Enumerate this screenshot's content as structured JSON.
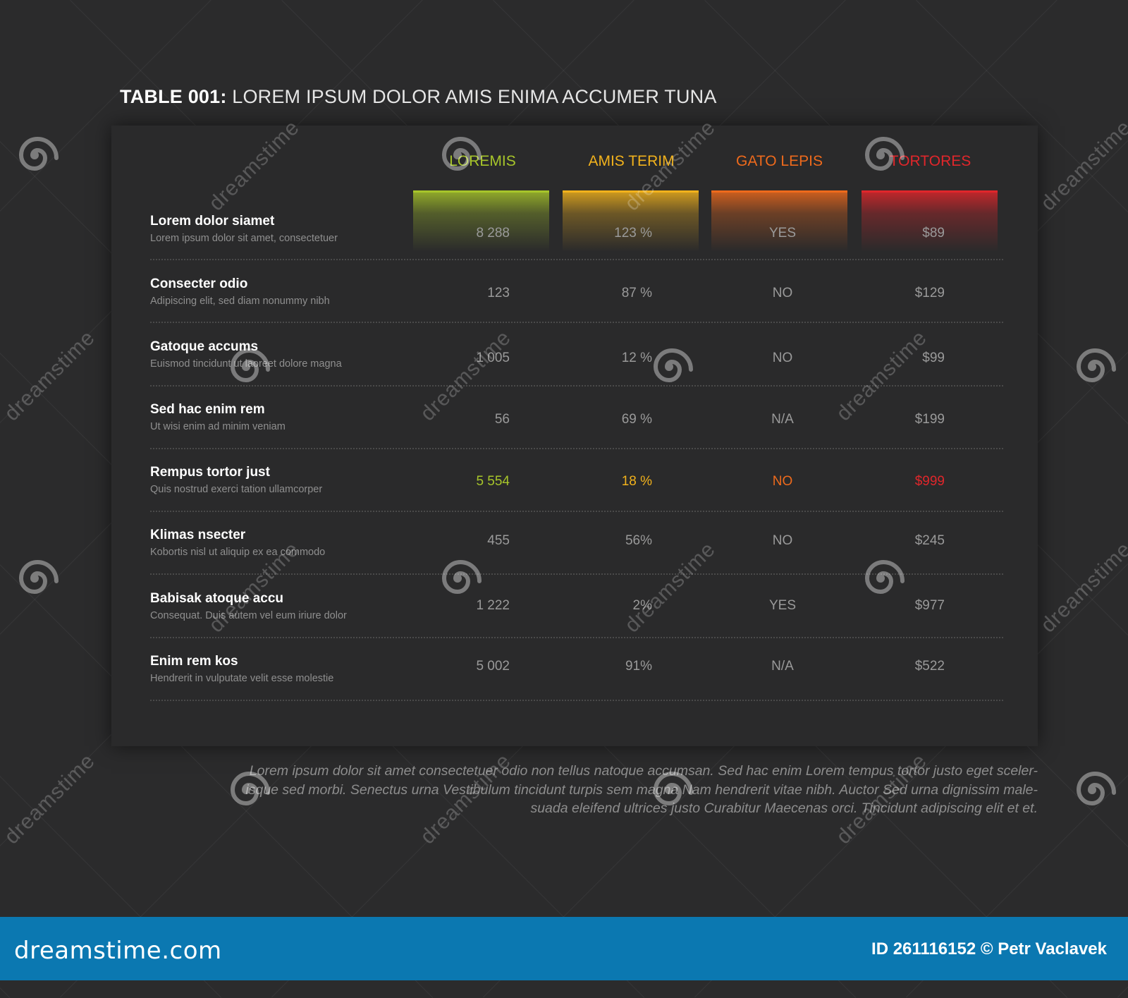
{
  "title": {
    "prefix": "TABLE 001:",
    "text": "LOREM IPSUM DOLOR AMIS ENIMA ACCUMER TUNA"
  },
  "colors": {
    "col1": "#a7c52a",
    "col2": "#f2b21c",
    "col3": "#ee6a1c",
    "col4": "#e0262b"
  },
  "columns": [
    {
      "label": "LOREMIS",
      "color": "#a7c52a"
    },
    {
      "label": "AMIS TERIM",
      "color": "#f2b21c"
    },
    {
      "label": "GATO LEPIS",
      "color": "#ee6a1c"
    },
    {
      "label": "TORTORES",
      "color": "#e0262b"
    }
  ],
  "rows": [
    {
      "title": "Lorem dolor siamet",
      "subtitle": "Lorem ipsum dolor sit amet, consectetuer",
      "values": [
        "8 288",
        "123 %",
        "YES",
        "$89"
      ]
    },
    {
      "title": "Consecter odio",
      "subtitle": "Adipiscing elit, sed diam nonummy nibh",
      "values": [
        "123",
        "87 %",
        "NO",
        "$129"
      ]
    },
    {
      "title": "Gatoque accums",
      "subtitle": "Euismod tincidunt ut laoreet dolore magna",
      "values": [
        "1 005",
        "12 %",
        "NO",
        "$99"
      ]
    },
    {
      "title": "Sed hac enim rem",
      "subtitle": "Ut wisi enim ad minim veniam",
      "values": [
        "56",
        "69 %",
        "N/A",
        "$199"
      ]
    },
    {
      "title": "Rempus tortor just",
      "subtitle": "Quis nostrud exerci tation ullamcorper",
      "values": [
        "5 554",
        "18 %",
        "NO",
        "$999"
      ],
      "highlight": true
    },
    {
      "title": "Klimas nsecter",
      "subtitle": "Kobortis nisl ut aliquip ex ea commodo",
      "values": [
        "455",
        "56%",
        "NO",
        "$245"
      ]
    },
    {
      "title": "Babisak atoque accu",
      "subtitle": "Consequat. Duis autem vel eum iriure dolor",
      "values": [
        "1 222",
        "2%",
        "YES",
        "$977"
      ]
    },
    {
      "title": "Enim rem kos",
      "subtitle": "Hendrerit in vulputate velit esse molestie",
      "values": [
        "5 002",
        "91%",
        "N/A",
        "$522"
      ]
    }
  ],
  "footnote": {
    "line1": "Lorem ipsum dolor sit amet consectetuer odio non tellus natoque accumsan. Sed hac enim Lorem tempus tortor justo eget sceler-",
    "line2": "isque sed morbi. Senectus urna Vestibulum tincidunt turpis sem magna Nam hendrerit vitae nibh. Auctor Sed urna dignissim male-",
    "line3": "suada eleifend ultrices justo Curabitur Maecenas orci. Tincidunt adipiscing elit et et."
  },
  "watermark": {
    "text": "dreamstime"
  },
  "footer": {
    "brand": "dreamstime.com",
    "credit": "ID 261116152 © Petr Vaclavek"
  }
}
